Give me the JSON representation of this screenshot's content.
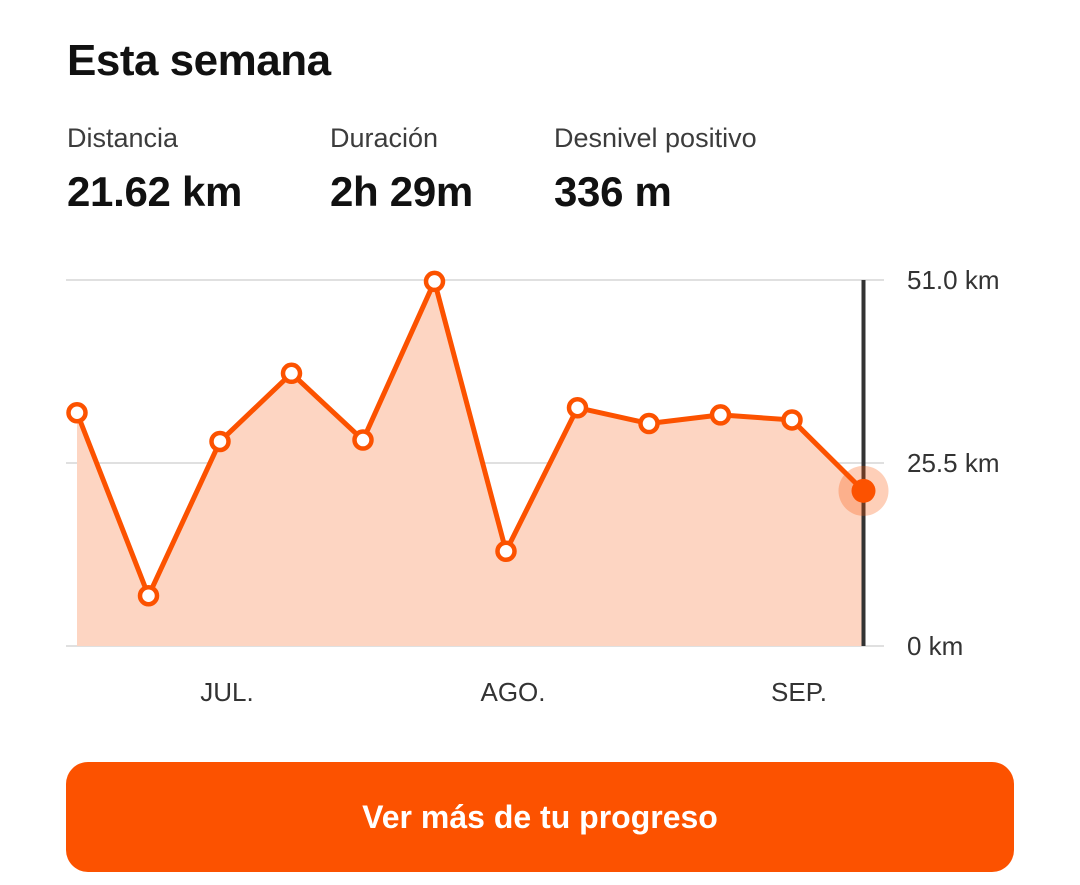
{
  "card": {
    "title": "Esta semana"
  },
  "stats": [
    {
      "label": "Distancia",
      "value": "21.62 km"
    },
    {
      "label": "Duración",
      "value": "2h 29m"
    },
    {
      "label": "Desnivel positivo",
      "value": "336 m"
    }
  ],
  "colors": {
    "accent": "#fc5200",
    "fill": "#fdd5c2",
    "marker": "#333333",
    "grid": "#e0e0e0"
  },
  "chart_data": {
    "type": "area",
    "ylabel": "",
    "xlabel": "",
    "ylim": [
      0,
      51.0
    ],
    "y_ticks": [
      {
        "value": 51.0,
        "label": "51.0 km"
      },
      {
        "value": 25.5,
        "label": "25.5 km"
      },
      {
        "value": 0,
        "label": "0 km"
      }
    ],
    "x_month_labels": [
      {
        "week": 2,
        "label": "JUL."
      },
      {
        "week": 6,
        "label": "AGO."
      },
      {
        "week": 10,
        "label": "SEP."
      }
    ],
    "series": [
      {
        "values": [
          32.5,
          7.0,
          28.5,
          38.0,
          28.7,
          50.8,
          13.2,
          33.2,
          31.0,
          32.2,
          31.5,
          21.62
        ]
      }
    ],
    "highlight_index": 11,
    "grid": true,
    "axis_position": "right"
  },
  "cta": {
    "label": "Ver más de tu progreso"
  }
}
